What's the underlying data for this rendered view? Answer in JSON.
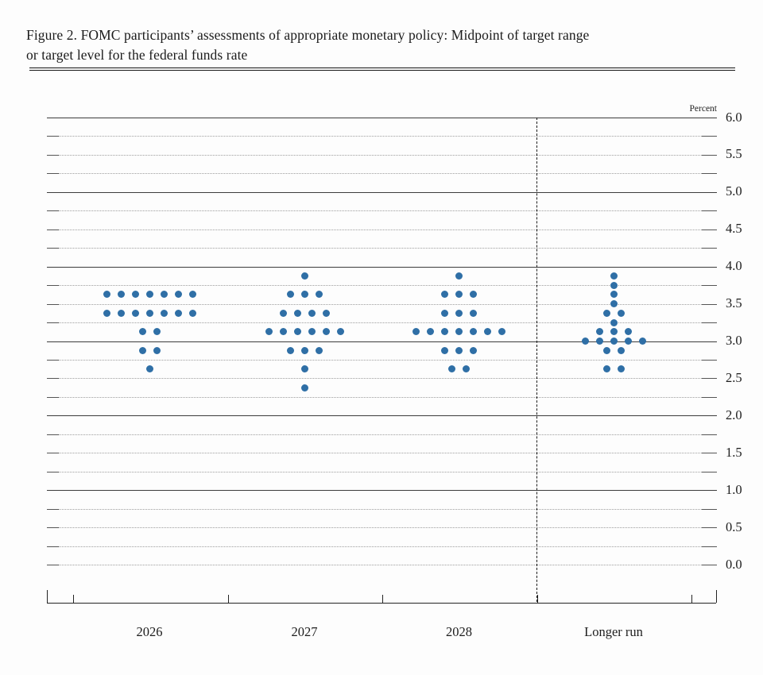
{
  "figure": {
    "title_line1": "Figure 2. FOMC participants’ assessments of appropriate monetary policy: Midpoint of target range",
    "title_line2": "or target level for the federal funds rate"
  },
  "chart_data": {
    "type": "scatter",
    "title": "FOMC participants’ assessments of appropriate monetary policy: Midpoint of target range or target level for the federal funds rate",
    "unit_label": "Percent",
    "categories": [
      "2026",
      "2027",
      "2028",
      "Longer run"
    ],
    "ylim": [
      0.0,
      6.0
    ],
    "ytick_label_interval": 0.5,
    "gridline_interval": 0.25,
    "ytick_labels": [
      "0.0",
      "0.5",
      "1.0",
      "1.5",
      "2.0",
      "2.5",
      "3.0",
      "3.5",
      "4.0",
      "4.5",
      "5.0",
      "5.5",
      "6.0"
    ],
    "grid_style": "solid lines at whole percents 1-6, dotted lines at quarter percents, dashed vertical divider before Longer run",
    "legend_position": "none",
    "dot_color": "#2F6FA6",
    "series": [
      {
        "category": "2026",
        "distribution": [
          {
            "rate": 3.625,
            "count": 7
          },
          {
            "rate": 3.375,
            "count": 7
          },
          {
            "rate": 3.125,
            "count": 2
          },
          {
            "rate": 2.875,
            "count": 2
          },
          {
            "rate": 2.625,
            "count": 1
          }
        ]
      },
      {
        "category": "2027",
        "distribution": [
          {
            "rate": 3.875,
            "count": 1
          },
          {
            "rate": 3.625,
            "count": 3
          },
          {
            "rate": 3.375,
            "count": 4
          },
          {
            "rate": 3.125,
            "count": 6
          },
          {
            "rate": 2.875,
            "count": 3
          },
          {
            "rate": 2.625,
            "count": 1
          },
          {
            "rate": 2.375,
            "count": 1
          }
        ]
      },
      {
        "category": "2028",
        "distribution": [
          {
            "rate": 3.875,
            "count": 1
          },
          {
            "rate": 3.625,
            "count": 3
          },
          {
            "rate": 3.375,
            "count": 3
          },
          {
            "rate": 3.125,
            "count": 7
          },
          {
            "rate": 2.875,
            "count": 3
          },
          {
            "rate": 2.625,
            "count": 2
          }
        ]
      },
      {
        "category": "Longer run",
        "distribution": [
          {
            "rate": 3.875,
            "count": 1
          },
          {
            "rate": 3.75,
            "count": 1
          },
          {
            "rate": 3.625,
            "count": 1
          },
          {
            "rate": 3.5,
            "count": 1
          },
          {
            "rate": 3.375,
            "count": 2
          },
          {
            "rate": 3.25,
            "count": 1
          },
          {
            "rate": 3.125,
            "count": 3
          },
          {
            "rate": 3.0,
            "count": 5
          },
          {
            "rate": 2.875,
            "count": 2
          },
          {
            "rate": 2.625,
            "count": 2
          }
        ]
      }
    ]
  }
}
